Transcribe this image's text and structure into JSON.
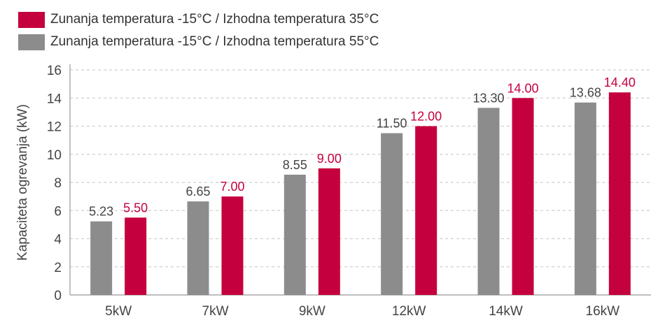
{
  "chart_data": {
    "type": "bar",
    "title": "",
    "xlabel": "",
    "ylabel": "Kapaciteta ogrevanja (kW)",
    "ylim": [
      0,
      16
    ],
    "yticks": [
      0,
      2,
      4,
      6,
      8,
      10,
      12,
      14,
      16
    ],
    "grid": true,
    "legend_position": "top-left",
    "categories": [
      "5kW",
      "7kW",
      "9kW",
      "12kW",
      "14kW",
      "16kW"
    ],
    "series": [
      {
        "name": "Zunanja temperatura -15°C / Izhodna temperatura 55°C",
        "color": "#8c8c8c",
        "label_color": "#444444",
        "values": [
          5.23,
          6.65,
          8.55,
          11.5,
          13.3,
          13.68
        ],
        "labels": [
          "5.23",
          "6.65",
          "8.55",
          "11.50",
          "13.30",
          "13.68"
        ]
      },
      {
        "name": "Zunanja temperatura -15°C / Izhodna temperatura 35°C",
        "color": "#c5003e",
        "label_color": "#c5003e",
        "values": [
          5.5,
          7.0,
          9.0,
          12.0,
          14.0,
          14.4
        ],
        "labels": [
          "5.50",
          "7.00",
          "9.00",
          "12.00",
          "14.00",
          "14.40"
        ]
      }
    ]
  },
  "legend": {
    "items": [
      {
        "label": "Zunanja temperatura -15°C / Izhodna temperatura 35°C",
        "color": "#c5003e"
      },
      {
        "label": "Zunanja temperatura -15°C / Izhodna temperatura 55°C",
        "color": "#8c8c8c"
      }
    ]
  }
}
